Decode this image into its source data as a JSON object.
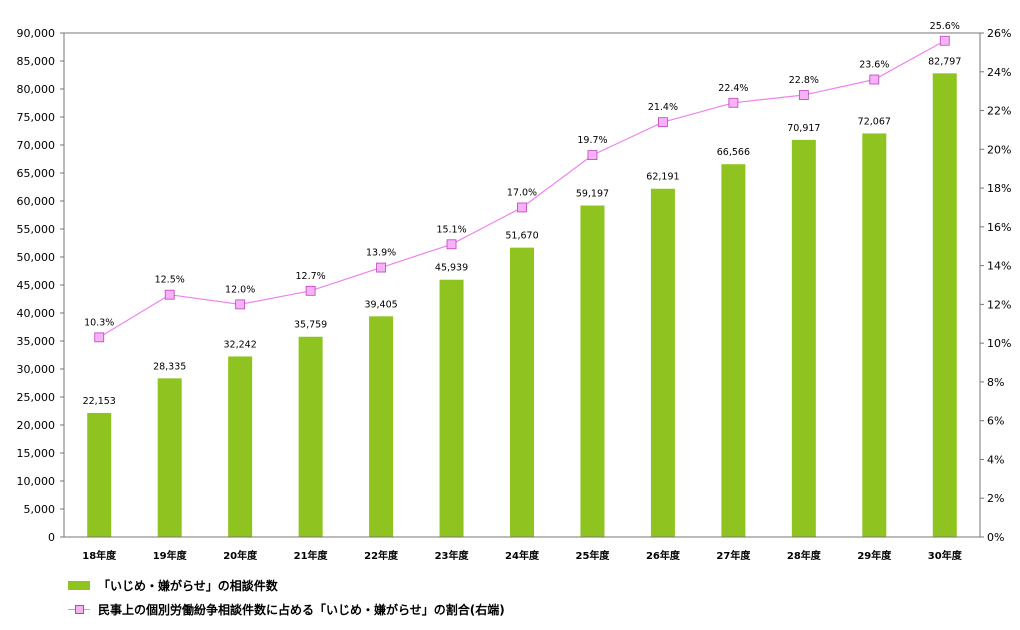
{
  "chart_data": {
    "type": "bar",
    "categories": [
      "18年度",
      "19年度",
      "20年度",
      "21年度",
      "22年度",
      "23年度",
      "24年度",
      "25年度",
      "26年度",
      "27年度",
      "28年度",
      "29年度",
      "30年度"
    ],
    "series": [
      {
        "name": "「いじめ・嫌がらせ」の相談件数",
        "type": "bar",
        "axis": "left",
        "values": [
          22153,
          28335,
          32242,
          35759,
          39405,
          45939,
          51670,
          59197,
          62191,
          66566,
          70917,
          72067,
          82797
        ],
        "labels": [
          "22,153",
          "28,335",
          "32,242",
          "35,759",
          "39,405",
          "45,939",
          "51,670",
          "59,197",
          "62,191",
          "66,566",
          "70,917",
          "72,067",
          "82,797"
        ]
      },
      {
        "name": "民事上の個別労働紛争相談件数に占める「いじめ・嫌がらせ」の割合(右端)",
        "type": "line",
        "axis": "right",
        "values": [
          10.3,
          12.5,
          12.0,
          12.7,
          13.9,
          15.1,
          17.0,
          19.7,
          21.4,
          22.4,
          22.8,
          23.6,
          25.6
        ],
        "labels": [
          "10.3%",
          "12.5%",
          "12.0%",
          "12.7%",
          "13.9%",
          "15.1%",
          "17.0%",
          "19.7%",
          "21.4%",
          "22.4%",
          "22.8%",
          "23.6%",
          "25.6%"
        ]
      }
    ],
    "y_left": {
      "range": [
        0,
        90000
      ],
      "ticks": [
        "0",
        "5,000",
        "10,000",
        "15,000",
        "20,000",
        "25,000",
        "30,000",
        "35,000",
        "40,000",
        "45,000",
        "50,000",
        "55,000",
        "60,000",
        "65,000",
        "70,000",
        "75,000",
        "80,000",
        "85,000",
        "90,000"
      ]
    },
    "y_right": {
      "range": [
        0,
        26
      ],
      "ticks": [
        "0%",
        "2%",
        "4%",
        "6%",
        "8%",
        "10%",
        "12%",
        "14%",
        "16%",
        "18%",
        "20%",
        "22%",
        "24%",
        "26%"
      ]
    },
    "grid": false,
    "legend_position": "bottom-left"
  },
  "colors": {
    "bar": "#8fc31f",
    "line": "#ee82ee",
    "marker_fill": "#f6b2f6",
    "marker_stroke": "#c040c0",
    "axis": "#777777"
  }
}
